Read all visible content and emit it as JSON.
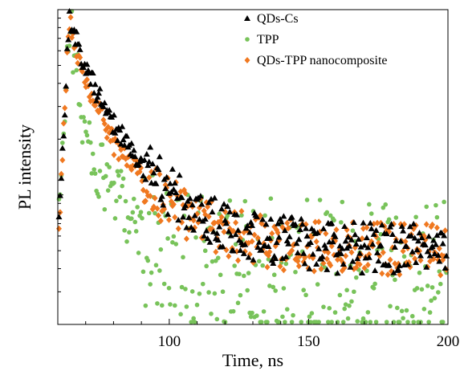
{
  "chart_data": {
    "type": "scatter",
    "xlabel": "Time, ns",
    "ylabel": "PL intensity",
    "xlim": [
      60,
      200
    ],
    "xticks": [
      100,
      150,
      200
    ],
    "y_scale": "log",
    "y_relative_range": [
      0.02,
      1.0
    ],
    "y_major_ticks": [
      0.1,
      1.0
    ],
    "grid": false,
    "legend_position": "top-right",
    "series": [
      {
        "name": "QDs-Cs",
        "marker": "triangle",
        "color": "#000000",
        "decay": [
          {
            "t": 60,
            "y": 0.05
          },
          {
            "t": 64,
            "y": 0.9
          },
          {
            "t": 70,
            "y": 0.48
          },
          {
            "t": 80,
            "y": 0.24
          },
          {
            "t": 90,
            "y": 0.15
          },
          {
            "t": 100,
            "y": 0.105
          },
          {
            "t": 110,
            "y": 0.08
          },
          {
            "t": 120,
            "y": 0.066
          },
          {
            "t": 140,
            "y": 0.056
          },
          {
            "t": 160,
            "y": 0.052
          },
          {
            "t": 200,
            "y": 0.05
          }
        ]
      },
      {
        "name": "TPP",
        "marker": "circle",
        "color": "#78c35a",
        "decay": [
          {
            "t": 60,
            "y": 0.05
          },
          {
            "t": 64,
            "y": 0.9
          },
          {
            "t": 70,
            "y": 0.2
          },
          {
            "t": 75,
            "y": 0.13
          },
          {
            "t": 80,
            "y": 0.1
          },
          {
            "t": 90,
            "y": 0.07
          },
          {
            "t": 100,
            "y": 0.055
          },
          {
            "t": 120,
            "y": 0.048
          },
          {
            "t": 150,
            "y": 0.045
          },
          {
            "t": 200,
            "y": 0.045
          }
        ]
      },
      {
        "name": "QDs-TPP nanocomposite",
        "marker": "diamond",
        "color": "#f07820",
        "decay": [
          {
            "t": 60,
            "y": 0.05
          },
          {
            "t": 64,
            "y": 0.9
          },
          {
            "t": 70,
            "y": 0.4
          },
          {
            "t": 80,
            "y": 0.19
          },
          {
            "t": 90,
            "y": 0.125
          },
          {
            "t": 100,
            "y": 0.09
          },
          {
            "t": 110,
            "y": 0.072
          },
          {
            "t": 120,
            "y": 0.062
          },
          {
            "t": 140,
            "y": 0.054
          },
          {
            "t": 160,
            "y": 0.052
          },
          {
            "t": 200,
            "y": 0.05
          }
        ]
      }
    ]
  }
}
